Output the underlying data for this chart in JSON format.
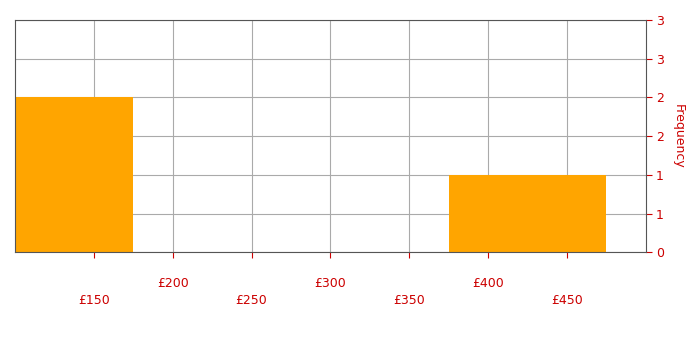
{
  "title": "",
  "xlabel": "",
  "ylabel": "Frequency",
  "ylabel_color": "#cc0000",
  "bar_color": "#FFA500",
  "bar_edge_color": "#FFA500",
  "xlim": [
    100,
    500
  ],
  "ylim": [
    0,
    3
  ],
  "bin_edges": [
    100,
    175,
    250,
    325,
    375,
    475,
    500
  ],
  "frequencies": [
    2,
    0,
    0,
    0,
    1,
    0
  ],
  "xticks_top": [
    200,
    300,
    400
  ],
  "xticks_bottom": [
    150,
    250,
    350,
    450
  ],
  "yticks": [
    0,
    0.6,
    1,
    1.5,
    2,
    2.5,
    3
  ],
  "ytick_labels": [
    "0",
    "1",
    "1",
    "2",
    "2",
    "3",
    "3"
  ],
  "grid_color": "#aaaaaa",
  "background_color": "#ffffff",
  "tick_color": "#cc0000",
  "tick_label_color": "#cc0000",
  "figsize": [
    7.0,
    3.5
  ],
  "dpi": 100
}
